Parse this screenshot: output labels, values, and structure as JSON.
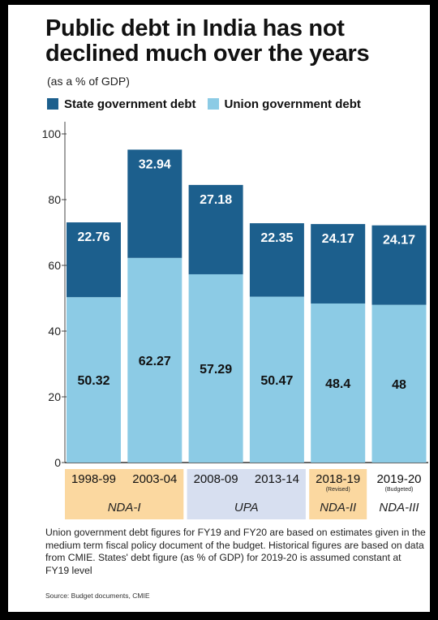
{
  "title": "Public debt in India has not declined much over the years",
  "subtitle": "(as a % of GDP)",
  "colors": {
    "state": "#1c5f8d",
    "union": "#8ccbe5",
    "nda_band": "#fbd8a0",
    "upa_band": "#d7dff0"
  },
  "chart_data": {
    "type": "bar",
    "stacked": true,
    "categories": [
      "1998-99",
      "2003-04",
      "2008-09",
      "2013-14",
      "2018-19",
      "2019-20"
    ],
    "category_notes": [
      "",
      "",
      "",
      "",
      "(Revised)",
      "(Budgeted)"
    ],
    "series": [
      {
        "name": "Union government debt",
        "values": [
          50.32,
          62.27,
          57.29,
          50.47,
          48.4,
          48
        ],
        "labels": [
          "50.32",
          "62.27",
          "57.29",
          "50.47",
          "48.4",
          "48"
        ]
      },
      {
        "name": "State government debt",
        "values": [
          22.76,
          32.94,
          27.18,
          22.35,
          24.17,
          24.17
        ],
        "labels": [
          "22.76",
          "32.94",
          "27.18",
          "22.35",
          "24.17",
          "24.17"
        ]
      }
    ],
    "yticks": [
      "0",
      "20",
      "40",
      "60",
      "80",
      "100"
    ],
    "ylim": [
      0,
      100
    ],
    "groups": [
      {
        "label": "NDA-I",
        "from": 0,
        "to": 1,
        "band": "nda"
      },
      {
        "label": "UPA",
        "from": 2,
        "to": 3,
        "band": "upa"
      },
      {
        "label": "NDA-II",
        "from": 4,
        "to": 4,
        "band": "nda"
      },
      {
        "label": "NDA-III",
        "from": 5,
        "to": 5,
        "band": "none"
      }
    ]
  },
  "note": "Union government debt figures for FY19 and FY20 are based on estimates given in the medium term fiscal policy document of the budget. Historical figures are based on data from CMIE. States' debt figure (as % of GDP) for 2019-20 is assumed constant at FY19 level",
  "source": "Source: Budget documents, CMIE"
}
